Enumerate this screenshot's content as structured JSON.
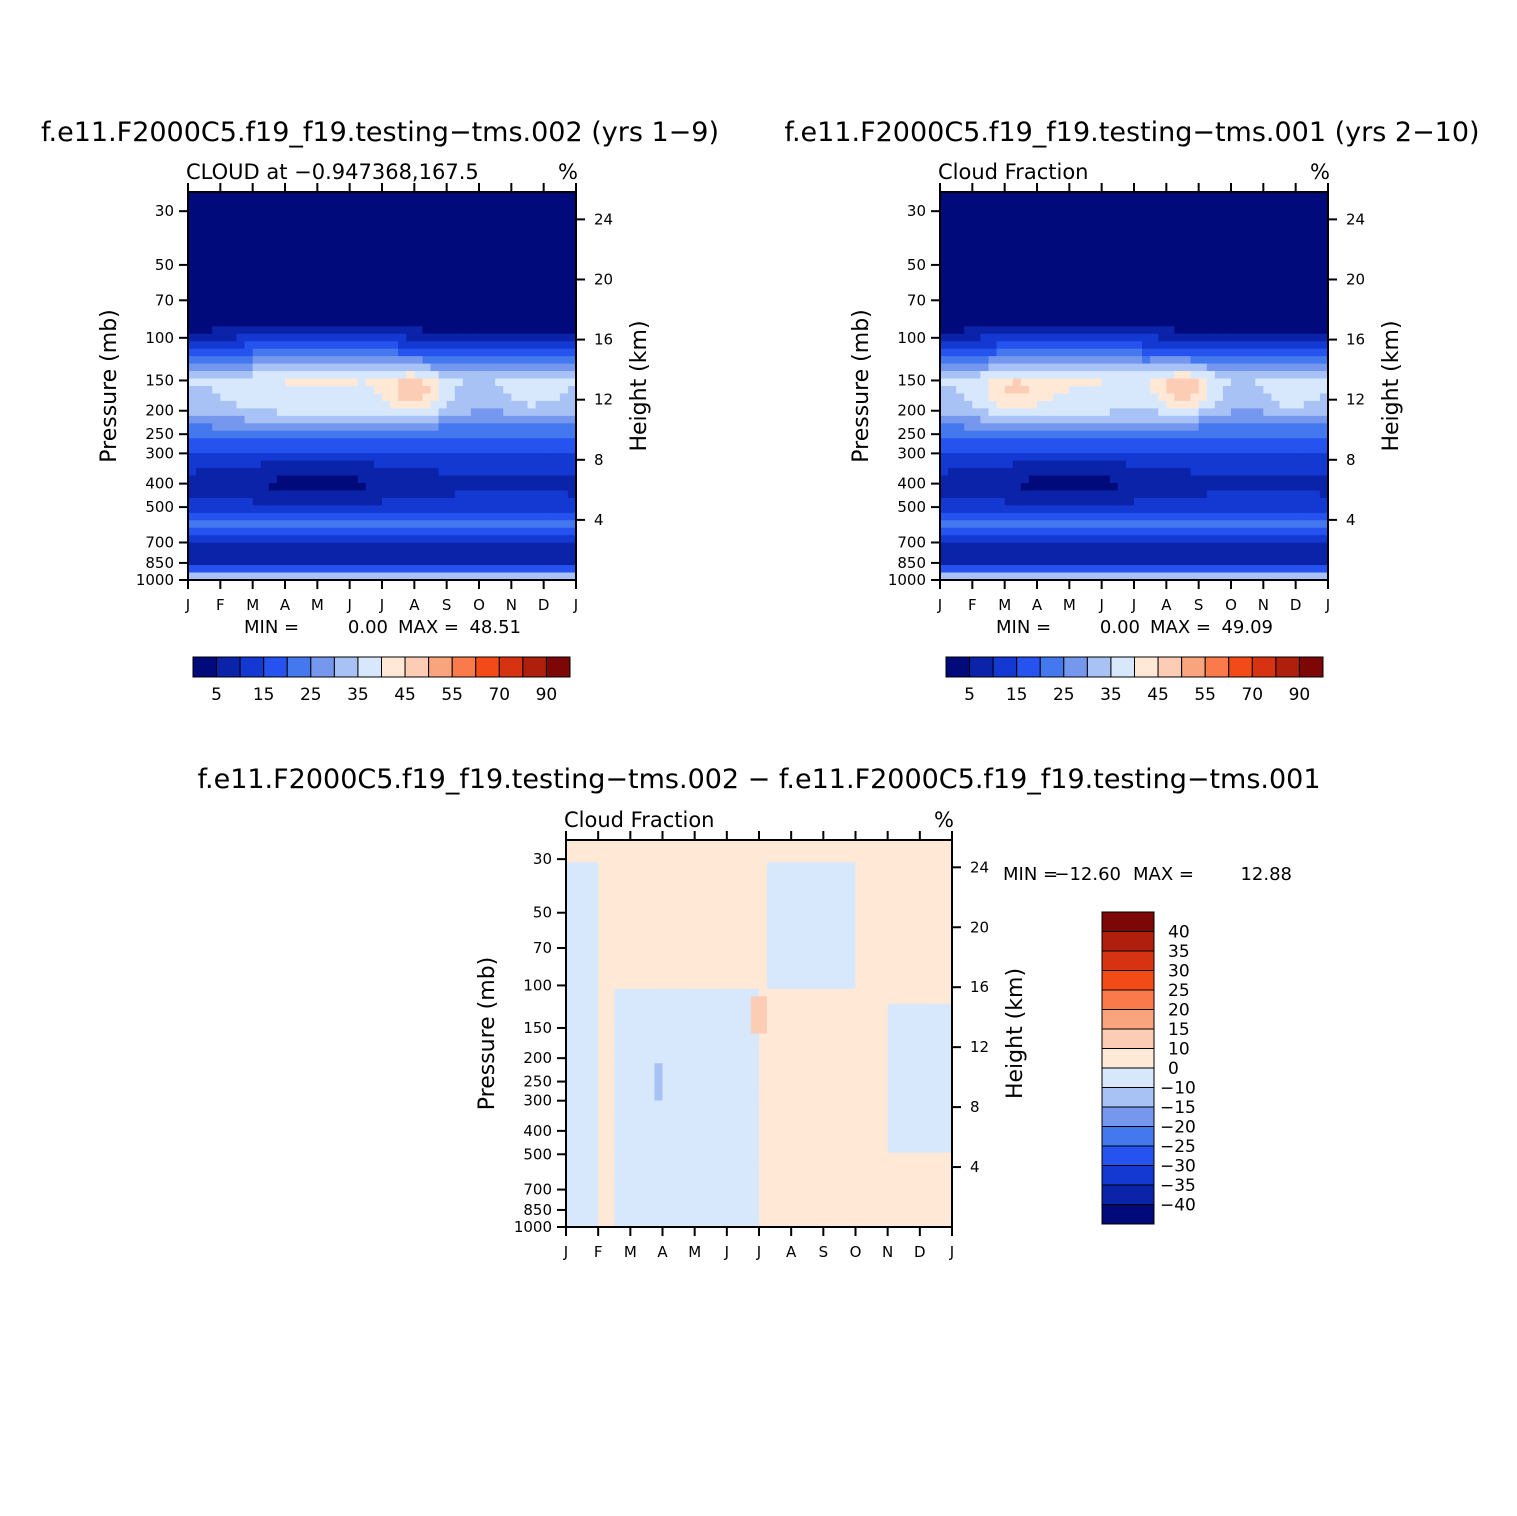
{
  "chart_data": [
    {
      "type": "heatmap",
      "panel": "top-left",
      "title": "f.e11.F2000C5.f19_f19.testing−tms.002 (yrs 1−9)",
      "subtitle": "CLOUD at −0.947368,167.5",
      "units": "%",
      "xlabel": "",
      "ylabel": "Pressure (mb)",
      "ylabel_right": "Height (km)",
      "x_ticks": [
        "J",
        "F",
        "M",
        "A",
        "M",
        "J",
        "J",
        "A",
        "S",
        "O",
        "N",
        "D",
        "J"
      ],
      "y_ticks": [
        30,
        50,
        70,
        100,
        150,
        200,
        250,
        300,
        400,
        500,
        700,
        850,
        1000
      ],
      "y_right_ticks": [
        24,
        20,
        16,
        12,
        8,
        4
      ],
      "min_label": "MIN =",
      "min_value": "0.00",
      "max_label": "MAX =",
      "max_value": "48.51",
      "levels": [
        5,
        10,
        15,
        20,
        25,
        30,
        35,
        40,
        45,
        50,
        55,
        60,
        70,
        80,
        90
      ],
      "colorbar_labels": [
        "5",
        "15",
        "25",
        "35",
        "45",
        "55",
        "70",
        "90"
      ],
      "colorbar_orientation": "horizontal",
      "profile_pressure": [
        30,
        50,
        70,
        90,
        100,
        120,
        150,
        200,
        250,
        300,
        400,
        500,
        600,
        700,
        850,
        1000
      ],
      "profile_values": [
        0,
        0,
        0,
        3,
        10,
        22,
        37,
        33,
        22,
        14,
        6,
        12,
        22,
        9,
        9,
        40
      ],
      "local_maxima": [
        {
          "month": 7.0,
          "pressure": 170,
          "value": 48
        },
        {
          "month": 10.6,
          "pressure": 165,
          "value": 43
        }
      ]
    },
    {
      "type": "heatmap",
      "panel": "top-right",
      "title": "f.e11.F2000C5.f19_f19.testing−tms.001 (yrs 2−10)",
      "subtitle": "Cloud Fraction",
      "units": "%",
      "xlabel": "",
      "ylabel": "Pressure (mb)",
      "ylabel_right": "Height (km)",
      "x_ticks": [
        "J",
        "F",
        "M",
        "A",
        "M",
        "J",
        "J",
        "A",
        "S",
        "O",
        "N",
        "D",
        "J"
      ],
      "y_ticks": [
        30,
        50,
        70,
        100,
        150,
        200,
        250,
        300,
        400,
        500,
        700,
        850,
        1000
      ],
      "y_right_ticks": [
        24,
        20,
        16,
        12,
        8,
        4
      ],
      "min_label": "MIN =",
      "min_value": "0.00",
      "max_label": "MAX =",
      "max_value": "49.09",
      "levels": [
        5,
        10,
        15,
        20,
        25,
        30,
        35,
        40,
        45,
        50,
        55,
        60,
        70,
        80,
        90
      ],
      "colorbar_labels": [
        "5",
        "15",
        "25",
        "35",
        "45",
        "55",
        "70",
        "90"
      ],
      "colorbar_orientation": "horizontal",
      "profile_pressure": [
        30,
        50,
        70,
        90,
        100,
        120,
        150,
        200,
        250,
        300,
        400,
        500,
        600,
        700,
        850,
        1000
      ],
      "profile_values": [
        0,
        0,
        0,
        3,
        10,
        22,
        37,
        33,
        22,
        14,
        6,
        12,
        22,
        9,
        9,
        40
      ],
      "local_maxima": [
        {
          "month": 2.3,
          "pressure": 170,
          "value": 43
        },
        {
          "month": 7.6,
          "pressure": 165,
          "value": 49
        },
        {
          "month": 10.8,
          "pressure": 165,
          "value": 43
        }
      ]
    },
    {
      "type": "heatmap",
      "panel": "bottom",
      "title": "f.e11.F2000C5.f19_f19.testing−tms.002 − f.e11.F2000C5.f19_f19.testing−tms.001",
      "subtitle": "Cloud Fraction",
      "units": "%",
      "xlabel": "",
      "ylabel": "Pressure (mb)",
      "ylabel_right": "Height (km)",
      "x_ticks": [
        "J",
        "F",
        "M",
        "A",
        "M",
        "J",
        "J",
        "A",
        "S",
        "O",
        "N",
        "D",
        "J"
      ],
      "y_ticks": [
        30,
        50,
        70,
        100,
        150,
        200,
        250,
        300,
        400,
        500,
        700,
        850,
        1000
      ],
      "y_right_ticks": [
        24,
        20,
        16,
        12,
        8,
        4
      ],
      "min_label": "MIN =",
      "min_value": "−12.60",
      "max_label": "MAX =",
      "max_value": "12.88",
      "levels": [
        -40,
        -35,
        -30,
        -25,
        -20,
        -15,
        -10,
        0,
        10,
        15,
        20,
        25,
        30,
        35,
        40
      ],
      "colorbar_labels": [
        "40",
        "35",
        "30",
        "25",
        "20",
        "15",
        "10",
        "0",
        "−10",
        "−15",
        "−20",
        "−25",
        "−30",
        "−35",
        "−40"
      ],
      "colorbar_orientation": "vertical",
      "regions": [
        {
          "sign": "negative",
          "range": [
            -10,
            0
          ],
          "months": [
            0,
            1
          ],
          "pressure": [
            30,
            1000
          ]
        },
        {
          "sign": "negative",
          "range": [
            -10,
            0
          ],
          "months": [
            1.5,
            6
          ],
          "pressure": [
            100,
            1000
          ]
        },
        {
          "sign": "negative",
          "range": [
            -15,
            -10
          ],
          "month": 2.9,
          "pressure": 250
        },
        {
          "sign": "positive",
          "range": [
            10,
            15
          ],
          "month": 6.0,
          "pressure": 130
        },
        {
          "sign": "negative",
          "range": [
            -10,
            0
          ],
          "months": [
            6.2,
            9.0
          ],
          "pressure": [
            30,
            100
          ]
        },
        {
          "sign": "negative",
          "range": [
            -10,
            0
          ],
          "months": [
            10,
            12
          ],
          "pressure": [
            120,
            500
          ]
        },
        {
          "sign": "positive",
          "range": [
            0,
            10
          ],
          "months": [
            3,
            12
          ],
          "pressure": [
            30,
            1000
          ]
        }
      ]
    }
  ],
  "colors": {
    "seq": [
      "#000a7a",
      "#0a23a8",
      "#1438d2",
      "#2653f0",
      "#4478ee",
      "#7598ee",
      "#a8c2f6",
      "#d7e8fc",
      "#ffe9d6",
      "#fdccb5",
      "#faa47d",
      "#fa7a4b",
      "#f34b17",
      "#d73313",
      "#ae1f0c",
      "#7d0606"
    ],
    "div": [
      "#000a7a",
      "#0a23a8",
      "#1438d2",
      "#2653f0",
      "#4478ee",
      "#7598ee",
      "#a8c2f6",
      "#d7e8fc",
      "#ffe9d6",
      "#fdccb5",
      "#faa47d",
      "#fa7a4b",
      "#f34b17",
      "#d73313",
      "#ae1f0c",
      "#7d0606"
    ]
  }
}
